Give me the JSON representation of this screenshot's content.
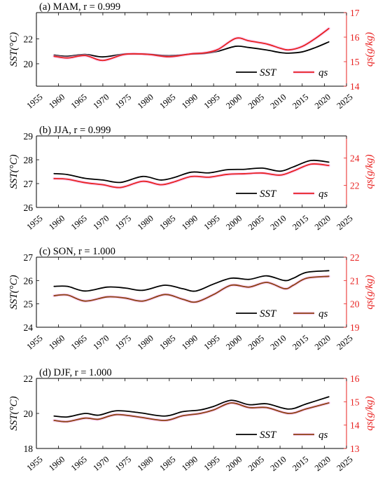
{
  "chart_data": [
    {
      "type": "line",
      "title": "(a) MAM, r = 0.999",
      "xlabel": "",
      "ylabel_left": "SST(°C)",
      "ylabel_right": "qs(g/kg)",
      "xlim": [
        1955,
        2025
      ],
      "xticks": [
        1955,
        1960,
        1965,
        1970,
        1975,
        1980,
        1985,
        1990,
        1995,
        2000,
        2005,
        2010,
        2015,
        2020,
        2025
      ],
      "ylim_left": [
        18.2,
        24.1
      ],
      "yticks_left": [
        20,
        22
      ],
      "ylim_right": [
        14,
        17
      ],
      "yticks_right": [
        14,
        15,
        16,
        17
      ],
      "grid": false,
      "legend_position": "bottom-right",
      "colors": {
        "left_axis": "#000000",
        "right_axis": "#e8201f"
      },
      "series": [
        {
          "name": "SST",
          "axis": "left",
          "color": "#000000",
          "x": [
            1959,
            1962,
            1966,
            1970,
            1975,
            1980,
            1985,
            1990,
            1993,
            1996,
            2000,
            2003,
            2007,
            2010,
            2012,
            2015,
            2018,
            2021
          ],
          "y": [
            20.7,
            20.6,
            20.75,
            20.55,
            20.78,
            20.77,
            20.65,
            20.78,
            20.82,
            21.0,
            21.4,
            21.3,
            21.1,
            20.9,
            20.85,
            20.95,
            21.3,
            21.75
          ]
        },
        {
          "name": "qs",
          "axis": "right",
          "color": "#e8201f",
          "x": [
            1959,
            1962,
            1966,
            1970,
            1975,
            1980,
            1985,
            1990,
            1993,
            1996,
            2000,
            2003,
            2007,
            2010,
            2012,
            2015,
            2018,
            2021
          ],
          "y": [
            15.22,
            15.15,
            15.25,
            15.05,
            15.3,
            15.3,
            15.2,
            15.32,
            15.36,
            15.5,
            15.95,
            15.85,
            15.72,
            15.55,
            15.48,
            15.62,
            15.95,
            16.35
          ]
        }
      ]
    },
    {
      "type": "line",
      "title": "(b) JJA, r = 0.999",
      "xlabel": "",
      "ylabel_left": "SST(°C)",
      "ylabel_right": "qs(g/kg)",
      "xlim": [
        1955,
        2025
      ],
      "xticks": [
        1955,
        1960,
        1965,
        1970,
        1975,
        1980,
        1985,
        1990,
        1995,
        2000,
        2005,
        2010,
        2015,
        2020,
        2025
      ],
      "ylim_left": [
        26,
        29
      ],
      "yticks_left": [
        26,
        27,
        28,
        29
      ],
      "ylim_right": [
        20.4,
        25.6
      ],
      "yticks_right": [
        22,
        24
      ],
      "grid": false,
      "legend_position": "bottom-right",
      "colors": {
        "left_axis": "#000000",
        "right_axis": "#e8201f"
      },
      "series": [
        {
          "name": "SST",
          "axis": "left",
          "color": "#000000",
          "x": [
            1959,
            1962,
            1966,
            1970,
            1974,
            1979,
            1983,
            1986,
            1990,
            1994,
            1998,
            2002,
            2006,
            2010,
            2013,
            2017,
            2021
          ],
          "y": [
            27.42,
            27.38,
            27.22,
            27.15,
            27.05,
            27.3,
            27.15,
            27.25,
            27.48,
            27.45,
            27.58,
            27.6,
            27.65,
            27.52,
            27.7,
            27.97,
            27.9
          ]
        },
        {
          "name": "qs",
          "axis": "right",
          "color": "#e8201f",
          "x": [
            1959,
            1962,
            1966,
            1970,
            1974,
            1979,
            1983,
            1986,
            1990,
            1994,
            1998,
            2002,
            2006,
            2010,
            2013,
            2017,
            2021
          ],
          "y": [
            22.5,
            22.45,
            22.2,
            22.05,
            21.85,
            22.3,
            22.05,
            22.25,
            22.65,
            22.6,
            22.8,
            22.85,
            22.9,
            22.75,
            23.05,
            23.55,
            23.45
          ]
        }
      ]
    },
    {
      "type": "line",
      "title": "(c) SON, r = 1.000",
      "xlabel": "",
      "ylabel_left": "SST(°C)",
      "ylabel_right": "qs(g/kg)",
      "xlim": [
        1955,
        2025
      ],
      "xticks": [
        1955,
        1960,
        1965,
        1970,
        1975,
        1980,
        1985,
        1990,
        1995,
        2000,
        2005,
        2010,
        2015,
        2020,
        2025
      ],
      "ylim_left": [
        24,
        27
      ],
      "yticks_left": [
        24,
        25,
        26,
        27
      ],
      "ylim_right": [
        19,
        22
      ],
      "yticks_right": [
        19,
        20,
        21,
        22
      ],
      "grid": false,
      "legend_position": "bottom-right",
      "colors": {
        "left_axis": "#000000",
        "right_axis": "#e8201f"
      },
      "series": [
        {
          "name": "SST",
          "axis": "left",
          "color": "#000000",
          "x": [
            1959,
            1962,
            1966,
            1971,
            1975,
            1979,
            1984,
            1988,
            1991,
            1995,
            1999,
            2003,
            2007,
            2011,
            2013,
            2016,
            2021
          ],
          "y": [
            25.75,
            25.75,
            25.55,
            25.72,
            25.68,
            25.58,
            25.8,
            25.65,
            25.55,
            25.85,
            26.1,
            26.05,
            26.2,
            26.0,
            26.1,
            26.35,
            26.42
          ]
        },
        {
          "name": "qs",
          "axis": "right",
          "color": "#8b3d10",
          "x": [
            1959,
            1962,
            1966,
            1971,
            1975,
            1979,
            1984,
            1988,
            1991,
            1995,
            1999,
            2003,
            2007,
            2011,
            2013,
            2016,
            2021
          ],
          "y": [
            20.35,
            20.38,
            20.12,
            20.3,
            20.25,
            20.12,
            20.4,
            20.2,
            20.08,
            20.4,
            20.8,
            20.72,
            20.92,
            20.65,
            20.8,
            21.1,
            21.18
          ]
        }
      ]
    },
    {
      "type": "line",
      "title": "(d) DJF, r = 1.000",
      "xlabel": "",
      "ylabel_left": "SST(°C)",
      "ylabel_right": "qs(g/kg)",
      "xlim": [
        1955,
        2025
      ],
      "xticks": [
        1955,
        1960,
        1965,
        1970,
        1975,
        1980,
        1985,
        1990,
        1995,
        2000,
        2005,
        2010,
        2015,
        2020,
        2025
      ],
      "ylim_left": [
        18,
        22
      ],
      "yticks_left": [
        18,
        20,
        22
      ],
      "ylim_right": [
        13,
        16
      ],
      "yticks_right": [
        13,
        14,
        15,
        16
      ],
      "grid": false,
      "legend_position": "bottom-right",
      "colors": {
        "left_axis": "#000000",
        "right_axis": "#e8201f"
      },
      "series": [
        {
          "name": "SST",
          "axis": "left",
          "color": "#000000",
          "x": [
            1959,
            1962,
            1966,
            1969,
            1973,
            1978,
            1984,
            1988,
            1992,
            1995,
            1999,
            2003,
            2007,
            2012,
            2016,
            2021
          ],
          "y": [
            19.85,
            19.8,
            20.0,
            19.9,
            20.15,
            20.05,
            19.85,
            20.1,
            20.2,
            20.4,
            20.75,
            20.5,
            20.55,
            20.25,
            20.55,
            20.95
          ]
        },
        {
          "name": "qs",
          "axis": "right",
          "color": "#8b3d10",
          "x": [
            1959,
            1962,
            1966,
            1969,
            1973,
            1978,
            1984,
            1988,
            1992,
            1995,
            1999,
            2003,
            2007,
            2012,
            2016,
            2021
          ],
          "y": [
            14.2,
            14.15,
            14.3,
            14.25,
            14.45,
            14.35,
            14.2,
            14.4,
            14.5,
            14.65,
            14.95,
            14.75,
            14.75,
            14.5,
            14.7,
            14.95
          ]
        }
      ]
    }
  ]
}
